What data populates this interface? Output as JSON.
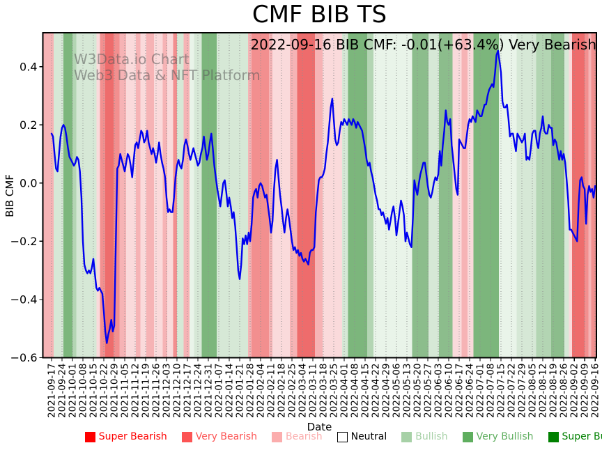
{
  "chart": {
    "title": "CMF BIB TS",
    "annotation": "2022-09-16 BIB CMF: -0.01(+63.4%) Very Bearish",
    "watermark": {
      "line1": "W3Data.io Chart",
      "line2": "Web3 Data & NFT Platform"
    },
    "xlabel": "Date",
    "ylabel": "BIB CMF"
  },
  "legend": {
    "items": [
      {
        "label": "Super Bearish",
        "color": "#fe0000",
        "text_color": "#fe0000",
        "edge": "#fe0000"
      },
      {
        "label": "Very Bearish",
        "color": "#fc5454",
        "text_color": "#fc5454",
        "edge": "#fc5454"
      },
      {
        "label": "Bearish",
        "color": "#fbadad",
        "text_color": "#fbadad",
        "edge": "#fbadad"
      },
      {
        "label": "Neutral",
        "color": "#ffffff",
        "text_color": "#000000",
        "edge": "#000000"
      },
      {
        "label": "Bullish",
        "color": "#a7d1a7",
        "text_color": "#a7d1a7",
        "edge": "#a7d1a7"
      },
      {
        "label": "Very Bullish",
        "color": "#5fae5f",
        "text_color": "#5fae5f",
        "edge": "#5fae5f"
      },
      {
        "label": "Super Bullish",
        "color": "#008000",
        "text_color": "#008000",
        "edge": "#008000"
      }
    ]
  },
  "chart_data": {
    "type": "line",
    "title": "CMF BIB TS",
    "xlabel": "Date",
    "ylabel": "BIB CMF",
    "grid": true,
    "legend_position": "bottom",
    "line_color": "#0000f0",
    "line_width": 2.4,
    "ylim": [
      -0.6,
      0.5167
    ],
    "yticks": [
      0.4,
      0.2,
      0.0,
      -0.2,
      -0.4,
      -0.6
    ],
    "y_tick_labels": [
      "0.4",
      "0.2",
      "0.0",
      "−0.2",
      "−0.4",
      "−0.6"
    ],
    "x_start_date": "2021-09-17",
    "x_end_date": "2022-09-16",
    "x_tick_interval_days": 7,
    "x_tick_labels": [
      "2021-09-17",
      "2021-09-24",
      "2021-10-01",
      "2021-10-08",
      "2021-10-15",
      "2021-10-22",
      "2021-10-29",
      "2021-11-05",
      "2021-11-12",
      "2021-11-19",
      "2021-11-26",
      "2021-12-03",
      "2021-12-10",
      "2021-12-17",
      "2021-12-24",
      "2021-12-31",
      "2022-01-07",
      "2022-01-14",
      "2022-01-21",
      "2022-01-28",
      "2022-02-04",
      "2022-02-11",
      "2022-02-18",
      "2022-02-25",
      "2022-03-04",
      "2022-03-11",
      "2022-03-18",
      "2022-03-25",
      "2022-04-01",
      "2022-04-08",
      "2022-04-15",
      "2022-04-22",
      "2022-04-29",
      "2022-05-06",
      "2022-05-13",
      "2022-05-20",
      "2022-05-27",
      "2022-06-03",
      "2022-06-10",
      "2022-06-17",
      "2022-06-24",
      "2022-07-01",
      "2022-07-08",
      "2022-07-15",
      "2022-07-22",
      "2022-07-29",
      "2022-08-05",
      "2022-08-12",
      "2022-08-19",
      "2022-08-26",
      "2022-09-02",
      "2022-09-09",
      "2022-09-16"
    ],
    "series": [
      {
        "name": "BIB CMF",
        "values": [
          0.17,
          0.16,
          0.1,
          0.05,
          0.04,
          0.1,
          0.16,
          0.19,
          0.2,
          0.19,
          0.16,
          0.12,
          0.09,
          0.08,
          0.07,
          0.06,
          0.07,
          0.09,
          0.08,
          0.04,
          -0.05,
          -0.2,
          -0.28,
          -0.3,
          -0.31,
          -0.3,
          -0.31,
          -0.29,
          -0.26,
          -0.31,
          -0.36,
          -0.37,
          -0.36,
          -0.37,
          -0.38,
          -0.44,
          -0.51,
          -0.55,
          -0.52,
          -0.5,
          -0.47,
          -0.51,
          -0.49,
          -0.22,
          0.05,
          0.06,
          0.1,
          0.08,
          0.06,
          0.04,
          0.07,
          0.1,
          0.09,
          0.06,
          0.02,
          0.08,
          0.13,
          0.14,
          0.12,
          0.15,
          0.18,
          0.17,
          0.14,
          0.15,
          0.18,
          0.14,
          0.12,
          0.1,
          0.12,
          0.1,
          0.07,
          0.1,
          0.14,
          0.1,
          0.07,
          0.05,
          0.02,
          -0.05,
          -0.1,
          -0.09,
          -0.1,
          -0.1,
          -0.05,
          0.02,
          0.06,
          0.08,
          0.06,
          0.05,
          0.08,
          0.13,
          0.15,
          0.13,
          0.1,
          0.08,
          0.1,
          0.12,
          0.1,
          0.08,
          0.06,
          0.07,
          0.1,
          0.12,
          0.16,
          0.12,
          0.08,
          0.1,
          0.14,
          0.17,
          0.12,
          0.06,
          0.02,
          -0.02,
          -0.05,
          -0.08,
          -0.04,
          0.0,
          0.01,
          -0.03,
          -0.08,
          -0.05,
          -0.08,
          -0.12,
          -0.1,
          -0.15,
          -0.22,
          -0.3,
          -0.33,
          -0.28,
          -0.19,
          -0.21,
          -0.18,
          -0.21,
          -0.17,
          -0.2,
          -0.14,
          -0.05,
          -0.03,
          -0.02,
          -0.05,
          -0.01,
          0.0,
          -0.01,
          -0.03,
          -0.05,
          -0.04,
          -0.08,
          -0.12,
          -0.17,
          -0.13,
          -0.02,
          0.05,
          0.08,
          0.02,
          -0.04,
          -0.08,
          -0.13,
          -0.17,
          -0.12,
          -0.09,
          -0.12,
          -0.16,
          -0.2,
          -0.23,
          -0.22,
          -0.24,
          -0.23,
          -0.25,
          -0.24,
          -0.26,
          -0.27,
          -0.26,
          -0.27,
          -0.28,
          -0.24,
          -0.23,
          -0.23,
          -0.22,
          -0.1,
          -0.04,
          0.01,
          0.02,
          0.02,
          0.03,
          0.05,
          0.1,
          0.14,
          0.2,
          0.26,
          0.29,
          0.22,
          0.15,
          0.13,
          0.14,
          0.18,
          0.21,
          0.2,
          0.22,
          0.21,
          0.2,
          0.22,
          0.21,
          0.2,
          0.22,
          0.21,
          0.19,
          0.21,
          0.2,
          0.19,
          0.18,
          0.15,
          0.12,
          0.08,
          0.06,
          0.07,
          0.04,
          0.02,
          -0.01,
          -0.04,
          -0.06,
          -0.09,
          -0.09,
          -0.11,
          -0.1,
          -0.12,
          -0.14,
          -0.12,
          -0.16,
          -0.13,
          -0.1,
          -0.08,
          -0.12,
          -0.18,
          -0.14,
          -0.1,
          -0.06,
          -0.08,
          -0.11,
          -0.2,
          -0.17,
          -0.19,
          -0.21,
          -0.22,
          -0.12,
          0.01,
          -0.02,
          -0.04,
          0.0,
          0.03,
          0.05,
          0.07,
          0.07,
          0.03,
          -0.01,
          -0.04,
          -0.05,
          -0.03,
          0.0,
          0.02,
          0.01,
          0.03,
          0.11,
          0.06,
          0.13,
          0.18,
          0.25,
          0.21,
          0.2,
          0.22,
          0.13,
          0.08,
          0.03,
          -0.02,
          -0.04,
          0.15,
          0.14,
          0.13,
          0.12,
          0.12,
          0.16,
          0.2,
          0.22,
          0.21,
          0.23,
          0.22,
          0.21,
          0.25,
          0.24,
          0.23,
          0.23,
          0.25,
          0.27,
          0.27,
          0.3,
          0.32,
          0.33,
          0.34,
          0.33,
          0.38,
          0.44,
          0.455,
          0.42,
          0.38,
          0.28,
          0.26,
          0.26,
          0.27,
          0.22,
          0.16,
          0.17,
          0.17,
          0.14,
          0.11,
          0.17,
          0.16,
          0.15,
          0.14,
          0.15,
          0.17,
          0.08,
          0.09,
          0.08,
          0.12,
          0.17,
          0.18,
          0.18,
          0.14,
          0.12,
          0.17,
          0.19,
          0.23,
          0.18,
          0.17,
          0.17,
          0.2,
          0.19,
          0.19,
          0.13,
          0.15,
          0.14,
          0.11,
          0.08,
          0.11,
          0.08,
          0.1,
          0.07,
          0.01,
          -0.06,
          -0.16,
          -0.16,
          -0.17,
          -0.18,
          -0.19,
          -0.2,
          -0.07,
          0.01,
          0.02,
          -0.01,
          -0.02,
          -0.14,
          -0.04,
          -0.01,
          -0.03,
          -0.02,
          -0.05,
          -0.01
        ]
      }
    ],
    "band_palette": {
      "red-strong": "#ee6c6c",
      "red-med": "#f28f8f",
      "pink": "#f6b3b5",
      "pink-pale": "#fadadb",
      "green-strong": "#7cb67c",
      "green-med": "#8cbd8c",
      "green-light": "#b3d5b3",
      "green-pale": "#d6e8d6",
      "green-faint": "#e9f4e9"
    },
    "background_bands": [
      {
        "from_day": -5.8,
        "to_day": 1.5,
        "level": "pink"
      },
      {
        "from_day": 1.5,
        "to_day": 8,
        "level": "green-pale"
      },
      {
        "from_day": 8,
        "to_day": 14,
        "level": "green-strong"
      },
      {
        "from_day": 14,
        "to_day": 16.5,
        "level": "green-light"
      },
      {
        "from_day": 16.5,
        "to_day": 30,
        "level": "green-pale"
      },
      {
        "from_day": 30,
        "to_day": 32.5,
        "level": "pink-pale"
      },
      {
        "from_day": 32.5,
        "to_day": 36,
        "level": "red-med"
      },
      {
        "from_day": 36,
        "to_day": 41.5,
        "level": "red-strong"
      },
      {
        "from_day": 41.5,
        "to_day": 45.5,
        "level": "red-med"
      },
      {
        "from_day": 45.5,
        "to_day": 50,
        "level": "pink"
      },
      {
        "from_day": 50,
        "to_day": 56.5,
        "level": "pink-pale"
      },
      {
        "from_day": 56.5,
        "to_day": 59.5,
        "level": "pink"
      },
      {
        "from_day": 59.5,
        "to_day": 63.5,
        "level": "pink-pale"
      },
      {
        "from_day": 63.5,
        "to_day": 68.5,
        "level": "pink"
      },
      {
        "from_day": 68.5,
        "to_day": 74.5,
        "level": "pink-pale"
      },
      {
        "from_day": 74.5,
        "to_day": 77.5,
        "level": "pink"
      },
      {
        "from_day": 77.5,
        "to_day": 81.5,
        "level": "pink-pale"
      },
      {
        "from_day": 81.5,
        "to_day": 84,
        "level": "red-med"
      },
      {
        "from_day": 84,
        "to_day": 88.5,
        "level": "green-pale"
      },
      {
        "from_day": 88.5,
        "to_day": 92.5,
        "level": "pink"
      },
      {
        "from_day": 92.5,
        "to_day": 95.5,
        "level": "green-faint"
      },
      {
        "from_day": 95.5,
        "to_day": 100.5,
        "level": "green-pale"
      },
      {
        "from_day": 100.5,
        "to_day": 110.5,
        "level": "green-strong"
      },
      {
        "from_day": 110.5,
        "to_day": 131.5,
        "level": "green-pale"
      },
      {
        "from_day": 131.5,
        "to_day": 134,
        "level": "pink"
      },
      {
        "from_day": 134,
        "to_day": 145.5,
        "level": "red-med"
      },
      {
        "from_day": 145.5,
        "to_day": 148,
        "level": "pink"
      },
      {
        "from_day": 148,
        "to_day": 159.5,
        "level": "pink-pale"
      },
      {
        "from_day": 159.5,
        "to_day": 164.5,
        "level": "pink"
      },
      {
        "from_day": 164.5,
        "to_day": 176.5,
        "level": "red-strong"
      },
      {
        "from_day": 176.5,
        "to_day": 181.5,
        "level": "pink"
      },
      {
        "from_day": 181.5,
        "to_day": 194.5,
        "level": "pink-pale"
      },
      {
        "from_day": 194.5,
        "to_day": 198.5,
        "level": "green-pale"
      },
      {
        "from_day": 198.5,
        "to_day": 211.5,
        "level": "green-strong"
      },
      {
        "from_day": 211.5,
        "to_day": 215.5,
        "level": "green-light"
      },
      {
        "from_day": 215.5,
        "to_day": 241.5,
        "level": "green-faint"
      },
      {
        "from_day": 241.5,
        "to_day": 252.5,
        "level": "green-med"
      },
      {
        "from_day": 252.5,
        "to_day": 259.5,
        "level": "green-pale"
      },
      {
        "from_day": 259.5,
        "to_day": 268.5,
        "level": "green-med"
      },
      {
        "from_day": 268.5,
        "to_day": 274.5,
        "level": "pink-pale"
      },
      {
        "from_day": 274.5,
        "to_day": 278.5,
        "level": "pink"
      },
      {
        "from_day": 278.5,
        "to_day": 282.5,
        "level": "pink-pale"
      },
      {
        "from_day": 282.5,
        "to_day": 299.5,
        "level": "green-strong"
      },
      {
        "from_day": 299.5,
        "to_day": 311.5,
        "level": "green-faint"
      },
      {
        "from_day": 311.5,
        "to_day": 324.5,
        "level": "green-pale"
      },
      {
        "from_day": 324.5,
        "to_day": 334.5,
        "level": "green-light"
      },
      {
        "from_day": 334.5,
        "to_day": 343.5,
        "level": "green-med"
      },
      {
        "from_day": 343.5,
        "to_day": 346.5,
        "level": "green-pale"
      },
      {
        "from_day": 346.5,
        "to_day": 348.5,
        "level": "pink-pale"
      },
      {
        "from_day": 348.5,
        "to_day": 357,
        "level": "red-strong"
      },
      {
        "from_day": 357,
        "to_day": 359.5,
        "level": "red-med"
      },
      {
        "from_day": 359.5,
        "to_day": 361.5,
        "level": "pink"
      },
      {
        "from_day": 361.5,
        "to_day": 365.4,
        "level": "red-med"
      }
    ]
  }
}
